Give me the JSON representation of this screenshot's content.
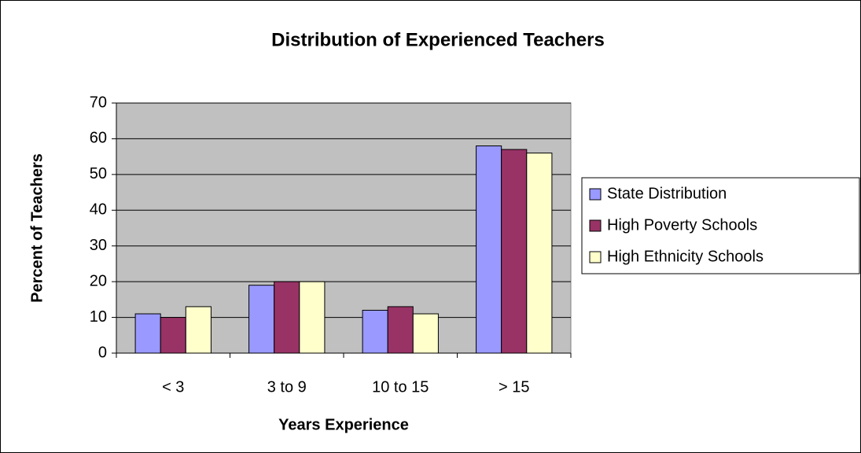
{
  "chart_data": {
    "type": "bar",
    "title": "Distribution of Experienced Teachers",
    "x_label": "Years Experience",
    "y_label": "Percent of Teachers",
    "categories": [
      "< 3",
      "3 to 9",
      "10 to 15",
      "> 15"
    ],
    "series": [
      {
        "name": "State Distribution",
        "color": "#9999ff",
        "values": [
          11,
          19,
          12,
          58
        ]
      },
      {
        "name": "High Poverty Schools",
        "color": "#993366",
        "values": [
          10,
          20,
          13,
          57
        ]
      },
      {
        "name": "High Ethnicity Schools",
        "color": "#ffffcc",
        "values": [
          13,
          20,
          11,
          56
        ]
      }
    ],
    "ylim": [
      0,
      70
    ],
    "yticks": [
      0,
      10,
      20,
      30,
      40,
      50,
      60,
      70
    ],
    "grid": true,
    "legend": "right"
  }
}
